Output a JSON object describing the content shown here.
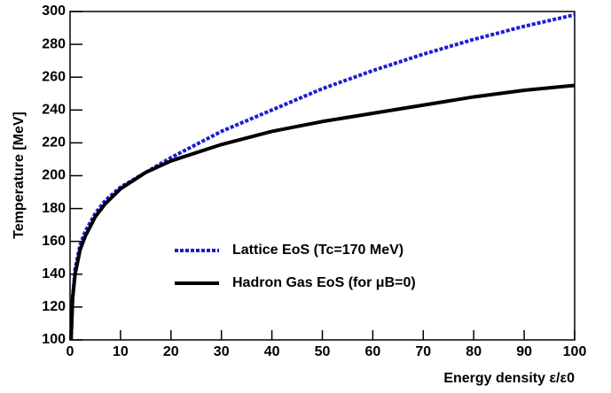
{
  "chart_data": {
    "type": "line",
    "x_label": "Energy density  ε/ε0",
    "y_label": "Temperature [MeV]",
    "x": [
      0.2,
      0.5,
      1,
      2,
      3,
      5,
      7,
      10,
      15,
      20,
      30,
      40,
      50,
      60,
      70,
      80,
      90,
      100
    ],
    "series": [
      {
        "name": "Lattice EoS (Tc=170 MeV)",
        "color": "#1c1cd6",
        "dashed": true,
        "values": [
          100,
          125,
          143,
          158,
          166,
          177,
          185,
          193,
          202,
          211,
          227,
          240,
          253,
          264,
          274,
          283,
          291,
          298
        ]
      },
      {
        "name": "Hadron Gas EoS (for μB=0)",
        "color": "#000000",
        "dashed": false,
        "values": [
          100,
          125,
          140,
          155,
          163,
          175,
          183,
          192,
          202,
          209,
          219,
          227,
          233,
          238,
          243,
          248,
          252,
          255
        ]
      }
    ],
    "xlim": [
      0,
      100
    ],
    "xticks": [
      0,
      10,
      20,
      30,
      40,
      50,
      60,
      70,
      80,
      90,
      100
    ],
    "ylim": [
      100,
      300
    ],
    "yticks": [
      100,
      120,
      140,
      160,
      180,
      200,
      220,
      240,
      260,
      280,
      300
    ],
    "grid": false
  }
}
